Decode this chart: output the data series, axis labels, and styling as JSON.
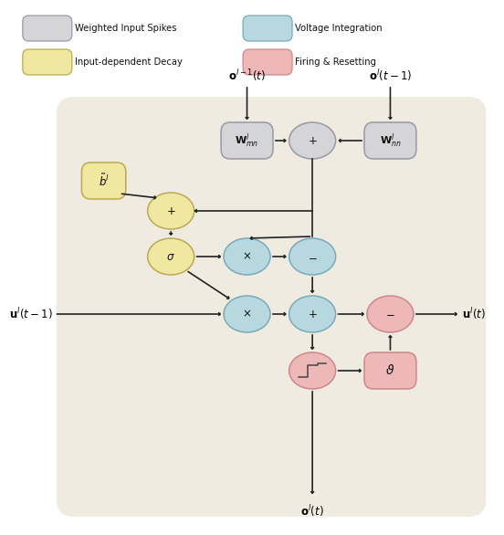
{
  "fig_width": 5.52,
  "fig_height": 5.86,
  "dpi": 100,
  "bg_color": "#f0ebe0",
  "colors": {
    "gray_fill": "#d5d5d8",
    "gray_edge": "#9898a8",
    "yellow_fill": "#f0e8a0",
    "yellow_edge": "#b8aa50",
    "blue_fill": "#b8d8e0",
    "blue_edge": "#78aabb",
    "pink_fill": "#eeb8b8",
    "pink_edge": "#cc8888",
    "arrow": "#222222"
  },
  "legend": [
    {
      "label": "Weighted Input Spikes",
      "fc": "#d5d5d8",
      "ec": "#9898a8",
      "col": 0
    },
    {
      "label": "Input-dependent Decay",
      "fc": "#f0e8a0",
      "ec": "#b8aa50",
      "col": 0
    },
    {
      "label": "Voltage Integration",
      "fc": "#b8d8e0",
      "ec": "#78aabb",
      "col": 1
    },
    {
      "label": "Firing & Resetting",
      "fc": "#eeb8b8",
      "ec": "#cc8888",
      "col": 1
    }
  ]
}
